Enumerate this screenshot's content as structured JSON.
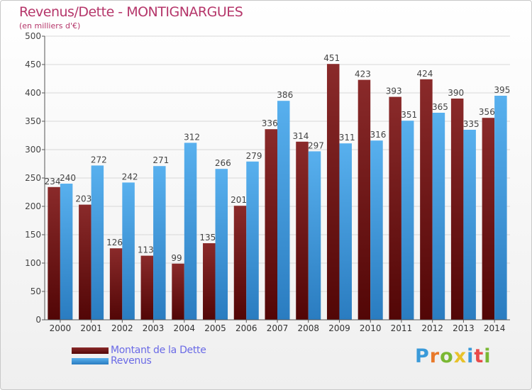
{
  "title": "Revenus/Dette - MONTIGNARGUES",
  "subtitle": "(en milliers d'€)",
  "logo_text": "Proxiti",
  "colors": {
    "debt": "#7a1c1c",
    "revenue": "#4aa3e3",
    "title": "#b5366a",
    "legend_text": "#6a6ae6"
  },
  "chart_data": {
    "type": "bar",
    "title": "Revenus/Dette - MONTIGNARGUES",
    "subtitle": "(en milliers d'€)",
    "xlabel": "",
    "ylabel": "",
    "categories": [
      "2000",
      "2001",
      "2002",
      "2003",
      "2004",
      "2005",
      "2006",
      "2007",
      "2008",
      "2009",
      "2010",
      "2011",
      "2012",
      "2013",
      "2014"
    ],
    "series": [
      {
        "name": "Montant de la Dette",
        "values": [
          234,
          203,
          126,
          113,
          99,
          135,
          201,
          336,
          314,
          451,
          423,
          393,
          424,
          390,
          356
        ]
      },
      {
        "name": "Revenus",
        "values": [
          240,
          272,
          242,
          271,
          312,
          266,
          279,
          386,
          297,
          311,
          316,
          351,
          365,
          335,
          395
        ]
      }
    ],
    "ylim": [
      0,
      500
    ],
    "yticks": [
      0,
      50,
      100,
      150,
      200,
      250,
      300,
      350,
      400,
      450,
      500
    ],
    "grid": true,
    "legend_position": "bottom-left"
  }
}
